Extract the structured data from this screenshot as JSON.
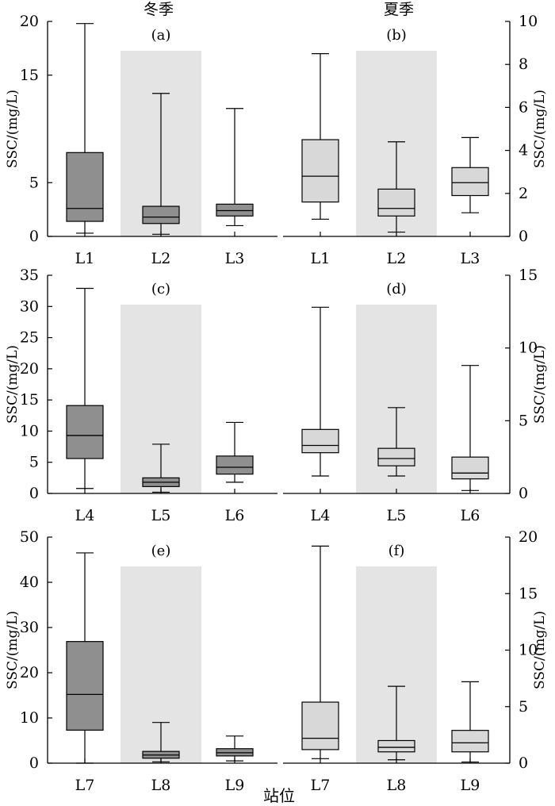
{
  "figure": {
    "xlabel": "站位",
    "column_titles": [
      "冬季",
      "夏季"
    ]
  },
  "chart_data": [
    {
      "type": "box",
      "panel": "(a)",
      "season": "冬季",
      "ylabel": "SSC/(mg/L)",
      "ylim": [
        0,
        20
      ],
      "yticks": [
        0,
        5,
        15,
        20
      ],
      "ytick_labels": [
        "0",
        "5",
        "15",
        "20"
      ],
      "categories": [
        "L1",
        "L2",
        "L3"
      ],
      "shaded_category": 1,
      "fill": "#8f8f8f",
      "boxes": [
        {
          "min": 0.3,
          "q1": 1.4,
          "median": 2.6,
          "q3": 7.8,
          "max": 19.8
        },
        {
          "min": 0.2,
          "q1": 1.2,
          "median": 1.8,
          "q3": 2.8,
          "max": 13.3
        },
        {
          "min": 1.0,
          "q1": 1.9,
          "median": 2.4,
          "q3": 3.0,
          "max": 11.9
        }
      ]
    },
    {
      "type": "box",
      "panel": "(b)",
      "season": "夏季",
      "ylabel": "SSC/(mg/L)",
      "ylim": [
        0,
        10
      ],
      "yticks": [
        0,
        2,
        4,
        6,
        8,
        10
      ],
      "ytick_labels": [
        "0",
        "2",
        "4",
        "6",
        "8",
        "10"
      ],
      "categories": [
        "L1",
        "L2",
        "L3"
      ],
      "shaded_category": 1,
      "fill": "#d8d8d8",
      "boxes": [
        {
          "min": 0.8,
          "q1": 1.6,
          "median": 2.8,
          "q3": 4.5,
          "max": 8.5
        },
        {
          "min": 0.2,
          "q1": 0.95,
          "median": 1.3,
          "q3": 2.2,
          "max": 4.4
        },
        {
          "min": 1.1,
          "q1": 1.9,
          "median": 2.5,
          "q3": 3.2,
          "max": 4.6
        }
      ]
    },
    {
      "type": "box",
      "panel": "(c)",
      "season": "冬季",
      "ylabel": "SSC/(mg/L)",
      "ylim": [
        0,
        35
      ],
      "yticks": [
        0,
        5,
        10,
        15,
        20,
        25,
        30,
        35
      ],
      "ytick_labels": [
        "0",
        "5",
        "10",
        "15",
        "20",
        "25",
        "30",
        "35"
      ],
      "categories": [
        "L4",
        "L5",
        "L6"
      ],
      "shaded_category": 1,
      "fill": "#8f8f8f",
      "boxes": [
        {
          "min": 0.8,
          "q1": 5.6,
          "median": 9.3,
          "q3": 14.1,
          "max": 32.9
        },
        {
          "min": 0.2,
          "q1": 1.1,
          "median": 1.8,
          "q3": 2.5,
          "max": 7.9
        },
        {
          "min": 1.8,
          "q1": 3.1,
          "median": 4.2,
          "q3": 6.0,
          "max": 11.4
        }
      ]
    },
    {
      "type": "box",
      "panel": "(d)",
      "season": "夏季",
      "ylabel": "SSC/(mg/L)",
      "ylim": [
        0,
        15
      ],
      "yticks": [
        0,
        5,
        10,
        15
      ],
      "ytick_labels": [
        "0",
        "5",
        "10",
        "15"
      ],
      "categories": [
        "L4",
        "L5",
        "L6"
      ],
      "shaded_category": 1,
      "fill": "#d8d8d8",
      "boxes": [
        {
          "min": 1.2,
          "q1": 2.8,
          "median": 3.3,
          "q3": 4.4,
          "max": 12.8
        },
        {
          "min": 1.2,
          "q1": 1.9,
          "median": 2.4,
          "q3": 3.1,
          "max": 5.9
        },
        {
          "min": 0.2,
          "q1": 1.0,
          "median": 1.4,
          "q3": 2.5,
          "max": 8.8
        }
      ]
    },
    {
      "type": "box",
      "panel": "(e)",
      "season": "冬季",
      "ylabel": "SSC/(mg/L)",
      "ylim": [
        0,
        50
      ],
      "yticks": [
        0,
        10,
        20,
        30,
        40,
        50
      ],
      "ytick_labels": [
        "0",
        "10",
        "20",
        "30",
        "40",
        "50"
      ],
      "categories": [
        "L7",
        "L8",
        "L9"
      ],
      "shaded_category": 1,
      "fill": "#8f8f8f",
      "boxes": [
        {
          "min": 0.0,
          "q1": 7.3,
          "median": 15.2,
          "q3": 26.9,
          "max": 46.5
        },
        {
          "min": 0.3,
          "q1": 1.1,
          "median": 1.8,
          "q3": 2.6,
          "max": 9.0
        },
        {
          "min": 0.5,
          "q1": 1.6,
          "median": 2.3,
          "q3": 3.2,
          "max": 6.0
        }
      ]
    },
    {
      "type": "box",
      "panel": "(f)",
      "season": "夏季",
      "ylabel": "SSC/(mg/L)",
      "ylim": [
        0,
        20
      ],
      "yticks": [
        0,
        5,
        10,
        15,
        20
      ],
      "ytick_labels": [
        "0",
        "5",
        "10",
        "15",
        "20"
      ],
      "categories": [
        "L7",
        "L8",
        "L9"
      ],
      "shaded_category": 1,
      "fill": "#d8d8d8",
      "boxes": [
        {
          "min": 0.4,
          "q1": 1.2,
          "median": 2.2,
          "q3": 5.4,
          "max": 19.2
        },
        {
          "min": 0.3,
          "q1": 1.0,
          "median": 1.4,
          "q3": 2.0,
          "max": 6.8
        },
        {
          "min": 0.1,
          "q1": 1.0,
          "median": 1.8,
          "q3": 2.9,
          "max": 7.2
        }
      ]
    }
  ]
}
